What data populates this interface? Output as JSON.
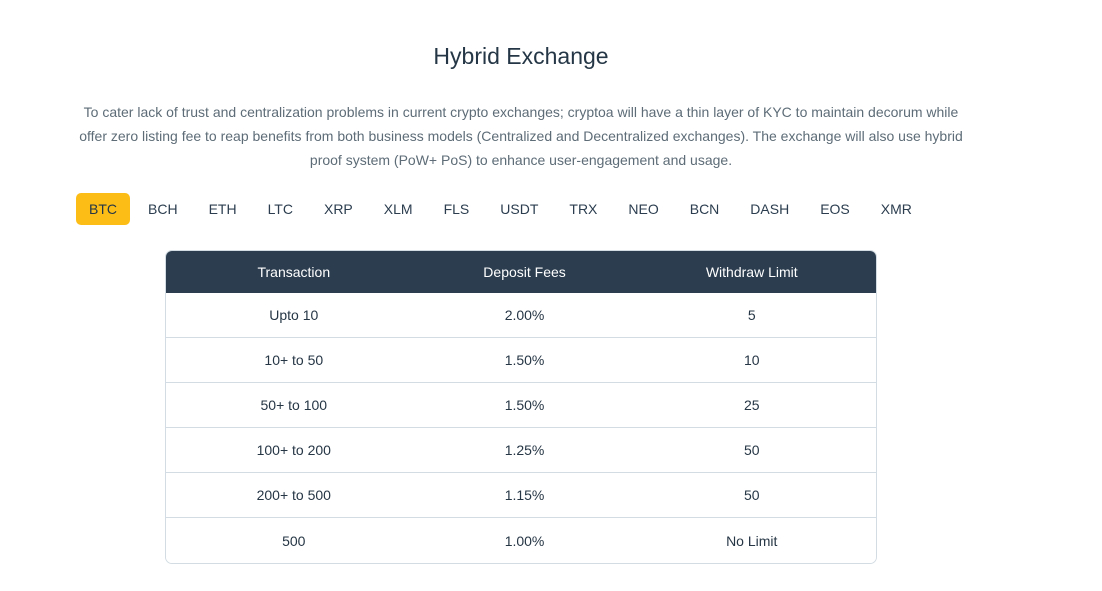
{
  "section": {
    "title": "Hybrid Exchange",
    "description_lines": [
      "To cater lack of trust and centralization problems in current crypto exchanges; cryptoa will have a thin layer of KYC to maintain decorum while",
      "offer zero listing fee to reap benefits from both business models (Centralized and Decentralized exchanges). The exchange will also use hybrid",
      "proof system (PoW+ PoS) to enhance user-engagement and usage."
    ]
  },
  "tabs": {
    "active": "BTC",
    "items": [
      "BTC",
      "BCH",
      "ETH",
      "LTC",
      "XRP",
      "XLM",
      "FLS",
      "USDT",
      "TRX",
      "NEO",
      "BCN",
      "DASH",
      "EOS",
      "XMR"
    ]
  },
  "table": {
    "headers": [
      "Transaction",
      "Deposit Fees",
      "Withdraw Limit"
    ],
    "rows": [
      [
        "Upto 10",
        "2.00%",
        "5"
      ],
      [
        "10+ to 50",
        "1.50%",
        "10"
      ],
      [
        "50+ to 100",
        "1.50%",
        "25"
      ],
      [
        "100+ to 200",
        "1.25%",
        "50"
      ],
      [
        "200+ to 500",
        "1.15%",
        "50"
      ],
      [
        "500",
        "1.00%",
        "No Limit"
      ]
    ]
  },
  "colors": {
    "accent": "#fcbd17",
    "table_header_bg": "#2b3d4f",
    "text_dark": "#253746",
    "text_muted": "#5d6c77",
    "border": "#d3dce2"
  }
}
